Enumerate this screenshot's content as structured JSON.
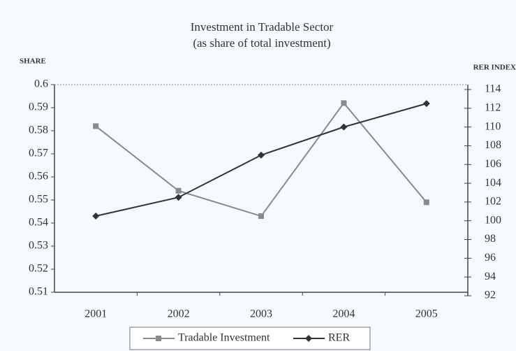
{
  "chart_data": {
    "type": "line",
    "title": "Investment in Tradable Sector",
    "subtitle": "(as  share of total investment)",
    "y_label": "SHARE",
    "y2_label": "RER INDEX",
    "categories": [
      "2001",
      "2002",
      "2003",
      "2004",
      "2005"
    ],
    "series": [
      {
        "name": "Tradable Investment",
        "color": "#8a8a8a",
        "marker": "square",
        "values": [
          0.582,
          0.554,
          0.543,
          0.592,
          0.549
        ]
      },
      {
        "name": "RER",
        "color": "#333333",
        "marker": "diamond",
        "axis": "y2",
        "values": [
          100.5,
          102.5,
          107,
          110,
          112.5
        ]
      }
    ],
    "ylim": [
      0.51,
      0.6
    ],
    "yticks": [
      0.51,
      0.52,
      0.53,
      0.54,
      0.55,
      0.56,
      0.57,
      0.58,
      0.59,
      0.6
    ],
    "y2lim": [
      92,
      114
    ],
    "y2ticks": [
      92,
      94,
      96,
      98,
      100,
      102,
      104,
      106,
      108,
      110,
      112,
      114
    ],
    "legend": "bottom"
  }
}
